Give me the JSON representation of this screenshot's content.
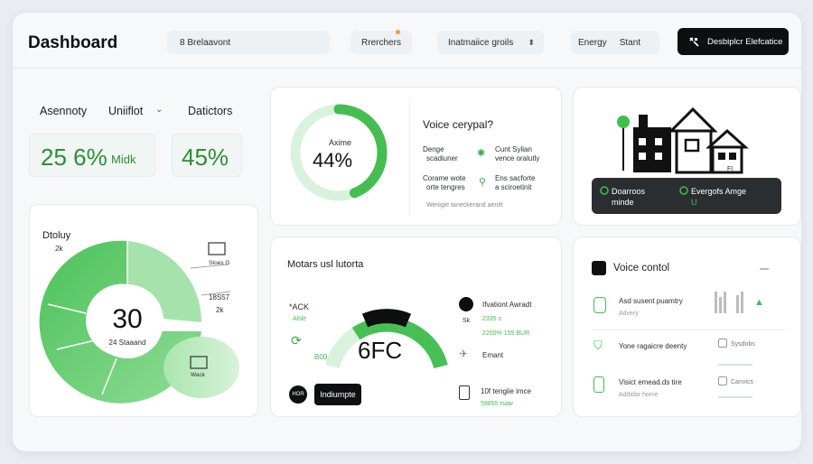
{
  "header": {
    "title": "Dashboard",
    "search_placeholder": "8 Brelaavont",
    "research_label": "Rrerchers",
    "select_label": "Inatmaiice groils",
    "select_chevron": "⬍",
    "energy_label": "Energy",
    "stant_label": "Stant",
    "cta_label": "Desbiplcr Elefcatice"
  },
  "left_top": {
    "tab1": "Asennoty",
    "tab2": "Uniiflot",
    "tab3": "Datictors",
    "stat1_value": "25 6%",
    "stat1_suffix": "Midk",
    "stat2_value": "45%"
  },
  "donut": {
    "title": "Dtoluy",
    "label_top": "2k",
    "center_value": "30",
    "center_sub": "24 Staaand",
    "legend1": "Stoes G",
    "legend2": "18S57",
    "legend3": "2k",
    "legend4": "Wack"
  },
  "gauge_card": {
    "ring_label": "Axime",
    "ring_value": "44%",
    "ring_percent": 44,
    "voice_title": "Voice cerypal?",
    "row1_a": "Denge",
    "row1_b": "scadiuner",
    "row1_c": "Cunt Sylian",
    "row1_d": "vence oralutly",
    "row2_a": "Corame wote",
    "row2_b": "orte tengres",
    "row2_c": "Ens sacforte",
    "row2_d": "a sciroetinit",
    "footer": "Wenigie taneckerand aenitt"
  },
  "house_card": {
    "label_a1": "Doarroos",
    "label_a2": "minde",
    "label_b1": "Evergofs Amge",
    "label_b2": "U",
    "tag": "FI"
  },
  "motor_card": {
    "title": "Motars usl lutorta",
    "left_label": "*ACK",
    "left_sub": "Alsle",
    "left_value": "B00",
    "gauge_value": "6FC",
    "badge": "HOR",
    "button": "Indiumpte",
    "r1_title": "Ifvationt Awradt",
    "r1_a": "Sk",
    "r1_b": "2335 s",
    "r1_c": "2200% 155 BUR",
    "r2_title": "Emant",
    "r3_title": "10f tengiie imce",
    "r3_sub": "59855 Isaw",
    "gauge_percent": 72
  },
  "voice_card": {
    "title": "Voice contol",
    "i1_title": "Asd susent puamtry",
    "i1_sub": "Advery",
    "i2_title": "Yone ragaicre deenty",
    "i2_tag": "Sysdobs",
    "i3_title": "Visict emead.ds tire",
    "i3_sub": "Addidar home",
    "i3_tag": "Canvics"
  },
  "colors": {
    "accent": "#3fbf4f",
    "accent_light": "#9fe0a4",
    "dark": "#0e0f10"
  }
}
